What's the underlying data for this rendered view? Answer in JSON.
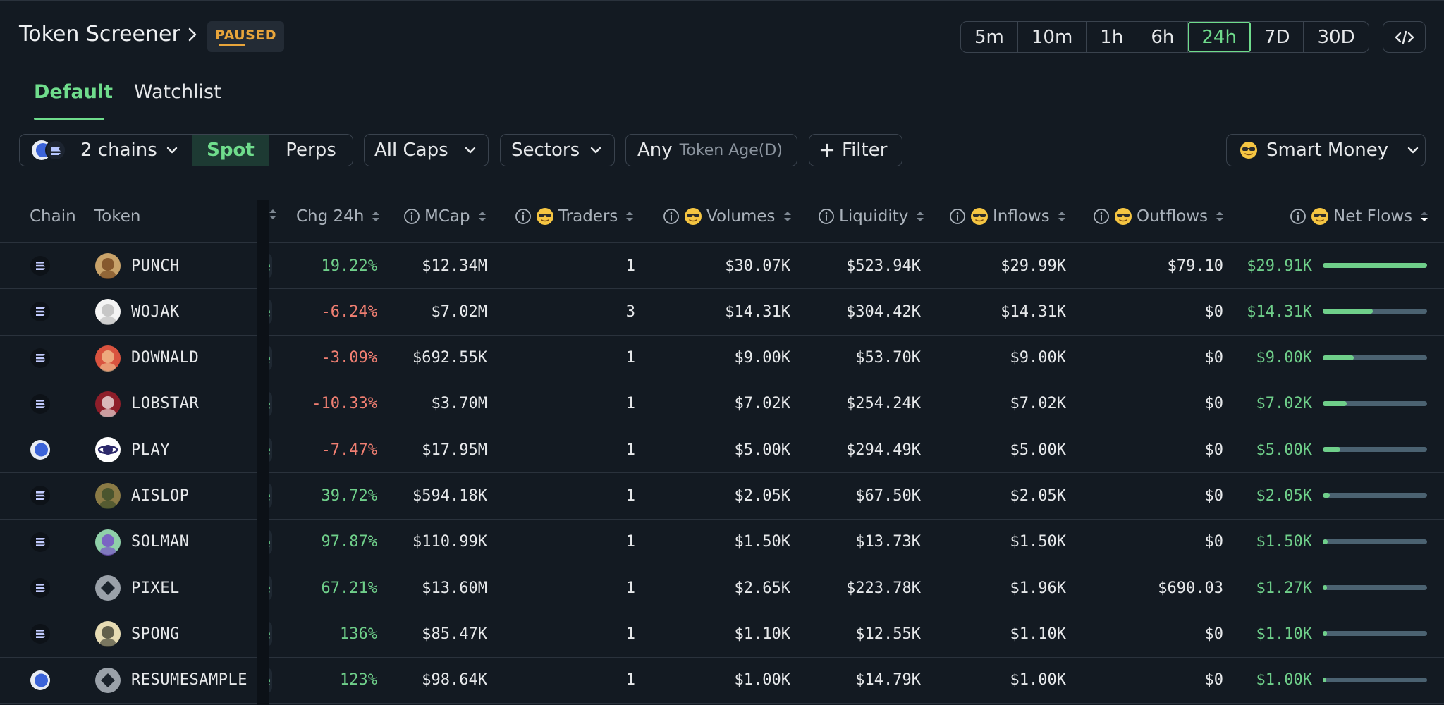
{
  "header": {
    "title": "Token Screener",
    "status_badge": "PAUSED",
    "timeframes": [
      "5m",
      "10m",
      "1h",
      "6h",
      "24h",
      "7D",
      "30D"
    ],
    "active_timeframe": "24h"
  },
  "tabs": [
    {
      "label": "Default",
      "active": true
    },
    {
      "label": "Watchlist",
      "active": false
    }
  ],
  "filters": {
    "chains_label": "2 chains",
    "market_spot": "Spot",
    "market_perps": "Perps",
    "caps": "All Caps",
    "sectors": "Sectors",
    "age_value": "Any",
    "age_label": "Token Age(D)",
    "add_filter": "Filter",
    "segment": "Smart Money"
  },
  "table": {
    "columns": {
      "chain": "Chain",
      "token": "Token",
      "chg": "Chg 24h",
      "mcap": "MCap",
      "traders": "Traders",
      "volumes": "Volumes",
      "liquidity": "Liquidity",
      "inflows": "Inflows",
      "outflows": "Outflows",
      "netflows": "Net Flows"
    },
    "rows": [
      {
        "chain": "solana",
        "token": "PUNCH",
        "chg": "19.22%",
        "chg_sign": "pos",
        "mcap": "$12.34M",
        "traders": "1",
        "volumes": "$30.07K",
        "liquidity": "$523.94K",
        "inflows": "$29.99K",
        "outflows": "$79.10",
        "netflows": "$29.91K",
        "netflow_fraction": 1.0
      },
      {
        "chain": "solana",
        "token": "WOJAK",
        "chg": "-6.24%",
        "chg_sign": "neg",
        "mcap": "$7.02M",
        "traders": "3",
        "volumes": "$14.31K",
        "liquidity": "$304.42K",
        "inflows": "$14.31K",
        "outflows": "$0",
        "netflows": "$14.31K",
        "netflow_fraction": 0.48
      },
      {
        "chain": "solana",
        "token": "DOWNALD",
        "chg": "-3.09%",
        "chg_sign": "neg",
        "mcap": "$692.55K",
        "traders": "1",
        "volumes": "$9.00K",
        "liquidity": "$53.70K",
        "inflows": "$9.00K",
        "outflows": "$0",
        "netflows": "$9.00K",
        "netflow_fraction": 0.3
      },
      {
        "chain": "solana",
        "token": "LOBSTAR",
        "chg": "-10.33%",
        "chg_sign": "neg",
        "mcap": "$3.70M",
        "traders": "1",
        "volumes": "$7.02K",
        "liquidity": "$254.24K",
        "inflows": "$7.02K",
        "outflows": "$0",
        "netflows": "$7.02K",
        "netflow_fraction": 0.23
      },
      {
        "chain": "base",
        "token": "PLAY",
        "chg": "-7.47%",
        "chg_sign": "neg",
        "mcap": "$17.95M",
        "traders": "1",
        "volumes": "$5.00K",
        "liquidity": "$294.49K",
        "inflows": "$5.00K",
        "outflows": "$0",
        "netflows": "$5.00K",
        "netflow_fraction": 0.17
      },
      {
        "chain": "solana",
        "token": "AISLOP",
        "chg": "39.72%",
        "chg_sign": "pos",
        "mcap": "$594.18K",
        "traders": "1",
        "volumes": "$2.05K",
        "liquidity": "$67.50K",
        "inflows": "$2.05K",
        "outflows": "$0",
        "netflows": "$2.05K",
        "netflow_fraction": 0.07
      },
      {
        "chain": "solana",
        "token": "SOLMAN",
        "chg": "97.87%",
        "chg_sign": "pos",
        "mcap": "$110.99K",
        "traders": "1",
        "volumes": "$1.50K",
        "liquidity": "$13.73K",
        "inflows": "$1.50K",
        "outflows": "$0",
        "netflows": "$1.50K",
        "netflow_fraction": 0.05
      },
      {
        "chain": "solana",
        "token": "PIXEL",
        "chg": "67.21%",
        "chg_sign": "pos",
        "mcap": "$13.60M",
        "traders": "1",
        "volumes": "$2.65K",
        "liquidity": "$223.78K",
        "inflows": "$1.96K",
        "outflows": "$690.03",
        "netflows": "$1.27K",
        "netflow_fraction": 0.04
      },
      {
        "chain": "solana",
        "token": "SPONG",
        "chg": "136%",
        "chg_sign": "pos",
        "mcap": "$85.47K",
        "traders": "1",
        "volumes": "$1.10K",
        "liquidity": "$12.55K",
        "inflows": "$1.10K",
        "outflows": "$0",
        "netflows": "$1.10K",
        "netflow_fraction": 0.04
      },
      {
        "chain": "base",
        "token": "RESUMESAMPLE",
        "chg": "123%",
        "chg_sign": "pos",
        "mcap": "$98.64K",
        "traders": "1",
        "volumes": "$1.00K",
        "liquidity": "$14.79K",
        "inflows": "$1.00K",
        "outflows": "$0",
        "netflows": "$1.00K",
        "netflow_fraction": 0.03
      }
    ]
  },
  "colors": {
    "accent": "#6fdc8c",
    "positive": "#6fcf8a",
    "negative": "#f07f72",
    "paused": "#e8a53b",
    "background": "#131a22"
  }
}
